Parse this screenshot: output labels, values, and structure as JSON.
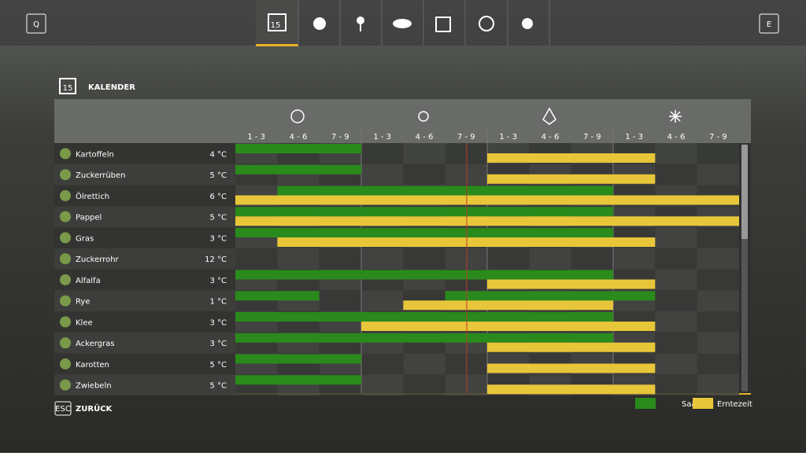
{
  "nav": {
    "left_key": "Q",
    "right_key": "E"
  },
  "title": "KALENDER",
  "calendar_icon_day": "15",
  "columns": [
    "1 - 3",
    "4 - 6",
    "7 - 9",
    "1 - 3",
    "4 - 6",
    "7 - 9",
    "1 - 3",
    "4 - 6",
    "7 - 9",
    "1 - 3",
    "4 - 6",
    "7 - 9"
  ],
  "rows": [
    {
      "name": "Kartoffeln",
      "temp": "4 °C",
      "sowing": [
        [
          0,
          3
        ]
      ],
      "harvest": [
        [
          6,
          10
        ]
      ]
    },
    {
      "name": "Zuckerrüben",
      "temp": "5 °C",
      "sowing": [
        [
          0,
          3
        ]
      ],
      "harvest": [
        [
          6,
          10
        ]
      ]
    },
    {
      "name": "Ölrettich",
      "temp": "6 °C",
      "sowing": [
        [
          1,
          9
        ]
      ],
      "harvest": [
        [
          0,
          12
        ]
      ]
    },
    {
      "name": "Pappel",
      "temp": "5 °C",
      "sowing": [
        [
          0,
          9
        ]
      ],
      "harvest": [
        [
          0,
          12
        ]
      ]
    },
    {
      "name": "Gras",
      "temp": "3 °C",
      "sowing": [
        [
          0,
          9
        ]
      ],
      "harvest": [
        [
          1,
          10
        ]
      ]
    },
    {
      "name": "Zuckerrohr",
      "temp": "12 °C",
      "sowing": [],
      "harvest": []
    },
    {
      "name": "Alfalfa",
      "temp": "3 °C",
      "sowing": [
        [
          0,
          9
        ]
      ],
      "harvest": [
        [
          6,
          10
        ]
      ]
    },
    {
      "name": "Rye",
      "temp": "1 °C",
      "sowing": [
        [
          0,
          2
        ],
        [
          5,
          10
        ]
      ],
      "harvest": [
        [
          4,
          9
        ]
      ]
    },
    {
      "name": "Klee",
      "temp": "3 °C",
      "sowing": [
        [
          0,
          9
        ]
      ],
      "harvest": [
        [
          3,
          10
        ]
      ]
    },
    {
      "name": "Ackergras",
      "temp": "3 °C",
      "sowing": [
        [
          0,
          9
        ]
      ],
      "harvest": [
        [
          6,
          10
        ]
      ]
    },
    {
      "name": "Karotten",
      "temp": "5 °C",
      "sowing": [
        [
          0,
          3
        ]
      ],
      "harvest": [
        [
          6,
          10
        ]
      ]
    },
    {
      "name": "Zwiebeln",
      "temp": "5 °C",
      "sowing": [
        [
          0,
          3
        ]
      ],
      "harvest": [
        [
          6,
          10
        ]
      ]
    }
  ],
  "footer": {
    "back_key": "ESC",
    "back_label": "ZURÜCK"
  },
  "legend": [
    {
      "name": "Saatzeit",
      "color": "#2a8a1c"
    },
    {
      "name": "Erntezeit",
      "color": "#e8c63a"
    }
  ]
}
